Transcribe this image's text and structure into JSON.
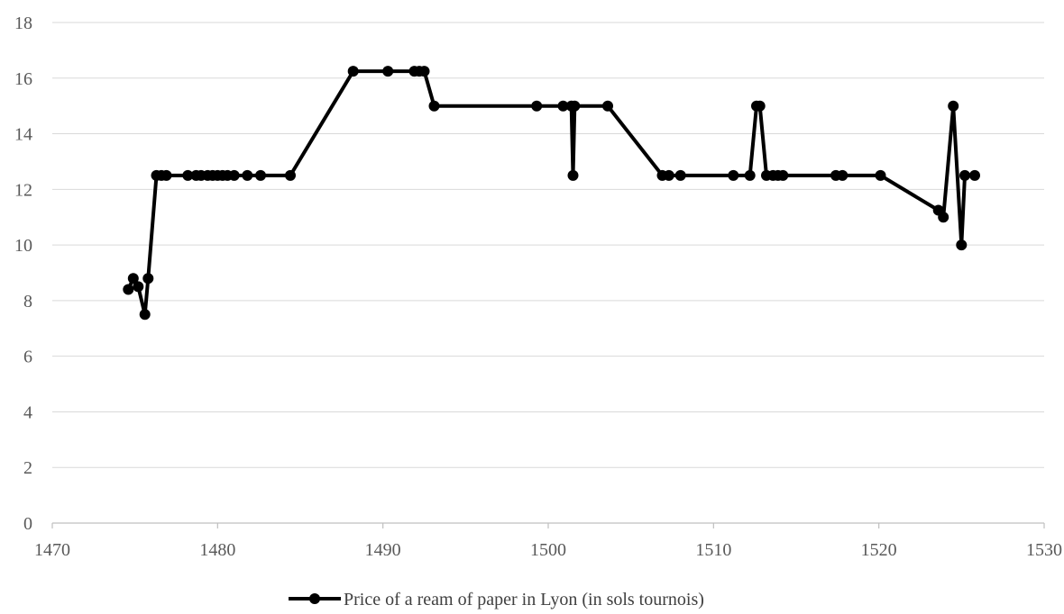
{
  "chart_data": {
    "type": "line",
    "title": "",
    "xlabel": "",
    "ylabel": "",
    "xlim": [
      1470,
      1530
    ],
    "ylim": [
      0,
      18
    ],
    "x_ticks": [
      "1470",
      "1480",
      "1490",
      "1500",
      "1510",
      "1520",
      "1530"
    ],
    "y_ticks": [
      "0",
      "2",
      "4",
      "6",
      "8",
      "10",
      "12",
      "14",
      "16",
      "18"
    ],
    "grid": "horizontal",
    "legend_position": "bottom",
    "series": [
      {
        "name": "Price of a ream of paper in Lyon (in sols tournois)",
        "color": "#000000",
        "marker": "circle",
        "points": [
          [
            1474.6,
            8.4
          ],
          [
            1474.9,
            8.8
          ],
          [
            1475.2,
            8.5
          ],
          [
            1475.6,
            7.5
          ],
          [
            1475.8,
            8.8
          ],
          [
            1476.3,
            12.5
          ],
          [
            1476.6,
            12.5
          ],
          [
            1476.9,
            12.5
          ],
          [
            1478.2,
            12.5
          ],
          [
            1478.7,
            12.5
          ],
          [
            1479.0,
            12.5
          ],
          [
            1479.4,
            12.5
          ],
          [
            1479.7,
            12.5
          ],
          [
            1480.0,
            12.5
          ],
          [
            1480.3,
            12.5
          ],
          [
            1480.6,
            12.5
          ],
          [
            1481.0,
            12.5
          ],
          [
            1481.8,
            12.5
          ],
          [
            1482.6,
            12.5
          ],
          [
            1484.4,
            12.5
          ],
          [
            1488.2,
            16.25
          ],
          [
            1490.3,
            16.25
          ],
          [
            1491.9,
            16.25
          ],
          [
            1492.2,
            16.25
          ],
          [
            1492.5,
            16.25
          ],
          [
            1493.1,
            15.0
          ],
          [
            1499.3,
            15.0
          ],
          [
            1500.9,
            15.0
          ],
          [
            1501.4,
            15.0
          ],
          [
            1501.5,
            12.5
          ],
          [
            1501.6,
            15.0
          ],
          [
            1503.6,
            15.0
          ],
          [
            1506.9,
            12.5
          ],
          [
            1507.3,
            12.5
          ],
          [
            1508.0,
            12.5
          ],
          [
            1511.2,
            12.5
          ],
          [
            1512.2,
            12.5
          ],
          [
            1512.6,
            15.0
          ],
          [
            1512.8,
            15.0
          ],
          [
            1513.2,
            12.5
          ],
          [
            1513.6,
            12.5
          ],
          [
            1513.9,
            12.5
          ],
          [
            1514.2,
            12.5
          ],
          [
            1517.4,
            12.5
          ],
          [
            1517.8,
            12.5
          ],
          [
            1520.1,
            12.5
          ],
          [
            1523.6,
            11.25
          ],
          [
            1523.9,
            11.0
          ],
          [
            1524.5,
            15.0
          ],
          [
            1525.0,
            10.0
          ],
          [
            1525.2,
            12.5
          ],
          [
            1525.8,
            12.5
          ]
        ]
      }
    ]
  }
}
